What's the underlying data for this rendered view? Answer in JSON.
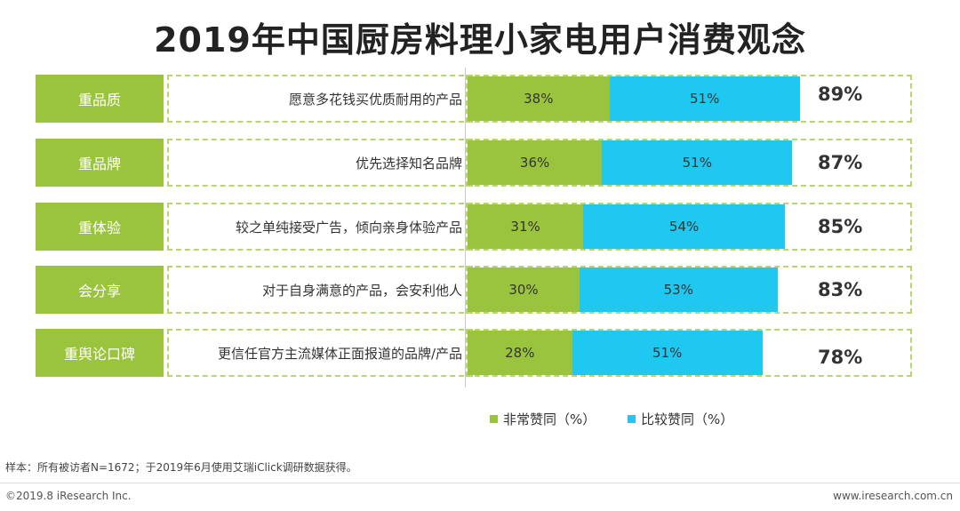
{
  "title": "2019年中国厨房料理小家电用户消费观念",
  "chart_data": {
    "type": "bar",
    "stacked": true,
    "orientation": "horizontal",
    "title": "2019年中国厨房料理小家电用户消费观念",
    "categories": [
      "重品质",
      "重品牌",
      "重体验",
      "会分享",
      "重舆论口碑"
    ],
    "descriptions": [
      "愿意多花钱买优质耐用的产品",
      "优先选择知名品牌",
      "较之单纯接受广告，倾向亲身体验产品",
      "对于自身满意的产品，会安利他人",
      "更信任官方主流媒体正面报道的品牌/产品"
    ],
    "series": [
      {
        "name": "非常赞同（%）",
        "values": [
          38,
          36,
          31,
          30,
          28
        ],
        "labels": [
          "38%",
          "36%",
          "31%",
          "30%",
          "28%"
        ],
        "color": "#9ac43d"
      },
      {
        "name": "比较赞同（%）",
        "values": [
          51,
          51,
          54,
          53,
          51
        ],
        "labels": [
          "51%",
          "51%",
          "54%",
          "53%",
          "51%"
        ],
        "color": "#1ec8f0"
      }
    ],
    "totals": [
      "89%",
      "87%",
      "85%",
      "83%",
      "78%"
    ],
    "xlim": [
      0,
      100
    ]
  },
  "legend": {
    "s1": "非常赞同（%）",
    "s2": "比较赞同（%）"
  },
  "source": "样本：所有被访者N=1672；于2019年6月使用艾瑞iClick调研数据获得。",
  "footer": {
    "left": "©2019.8 iResearch Inc.",
    "right": "www.iresearch.com.cn"
  }
}
